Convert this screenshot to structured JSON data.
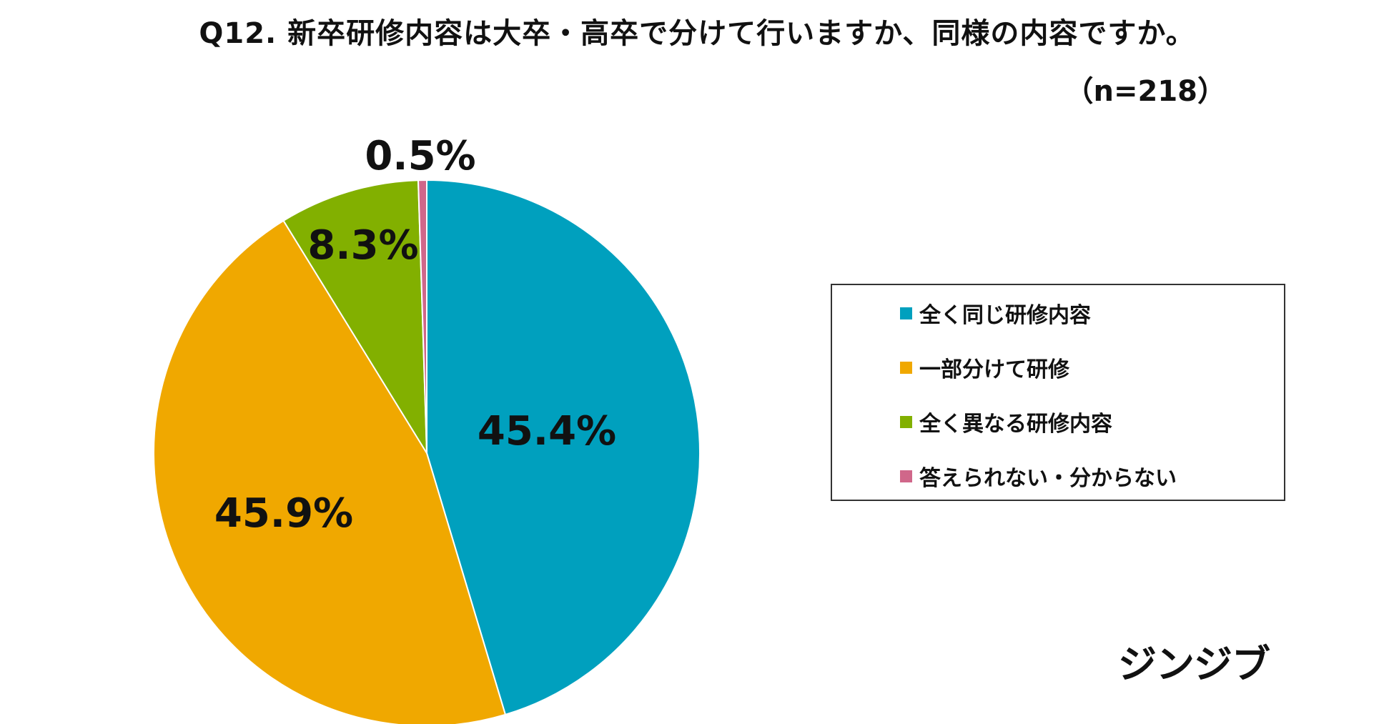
{
  "header": {
    "title": "Q12. 新卒研修内容は大卒・高卒で分けて行いますか、同様の内容ですか。",
    "sample_size": "（n=218）"
  },
  "brand": {
    "logo_text": "ジンジブ"
  },
  "chart_data": {
    "type": "pie",
    "title": "Q12. 新卒研修内容は大卒・高卒で分けて行いますか、同様の内容ですか。",
    "n": 218,
    "slices": [
      {
        "label": "全く同じ研修内容",
        "value": 45.4,
        "value_label": "45.4%",
        "color": "#00A0BE"
      },
      {
        "label": "一部分けて研修",
        "value": 45.9,
        "value_label": "45.9%",
        "color": "#F0A800"
      },
      {
        "label": "全く異なる研修内容",
        "value": 8.3,
        "value_label": "8.3%",
        "color": "#82B000"
      },
      {
        "label": "答えられない・分からない",
        "value": 0.5,
        "value_label": "0.5%",
        "color": "#D0678A"
      }
    ],
    "start_angle": "12 o'clock",
    "direction": "clockwise",
    "legend_position": "right"
  }
}
